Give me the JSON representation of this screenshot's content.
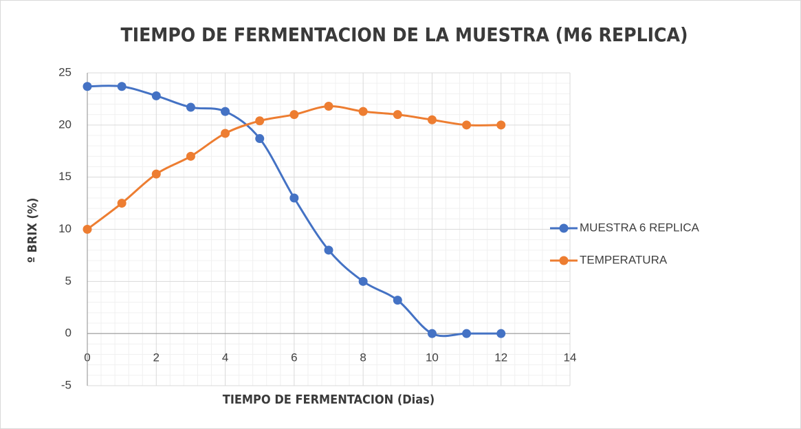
{
  "chart_data": {
    "type": "line",
    "smooth": true,
    "title": "TIEMPO DE FERMENTACION DE LA MUESTRA (M6 REPLICA)",
    "x_label": "TIEMPO DE FERMENTACION (Dias)",
    "y_label": "º BRIX (%)",
    "x": [
      0,
      1,
      2,
      3,
      4,
      5,
      6,
      7,
      8,
      9,
      10,
      11,
      12
    ],
    "series": [
      {
        "name": "MUESTRA 6 REPLICA",
        "color": "#4472c4",
        "values": [
          23.7,
          23.7,
          22.8,
          21.7,
          21.3,
          18.7,
          13,
          8,
          5,
          3.2,
          0,
          0,
          0
        ]
      },
      {
        "name": "TEMPERATURA",
        "color": "#ed7d31",
        "values": [
          10,
          12.5,
          15.3,
          17,
          19.2,
          20.4,
          21,
          21.8,
          21.3,
          21,
          20.5,
          20,
          20
        ]
      }
    ],
    "xlim": [
      0,
      14
    ],
    "xticks": [
      0,
      2,
      4,
      6,
      8,
      10,
      12,
      14
    ],
    "ylim": [
      -5,
      25
    ],
    "yticks": [
      -5,
      0,
      5,
      10,
      15,
      20,
      25
    ],
    "grid": true,
    "minor_grid": true,
    "legend": "right"
  }
}
